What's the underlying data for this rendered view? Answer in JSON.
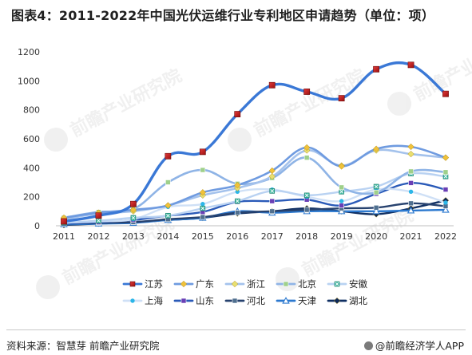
{
  "title": "图表4：2011-2022年中国光伏运维行业专利地区申请趋势（单位：项）",
  "footer": {
    "source": "资料来源：智慧芽 前瞻产业研究院",
    "brand": "@前瞻经济学人APP"
  },
  "watermark": "前瞻产业研究院",
  "colors": {
    "江苏": "#3a78d6",
    "广东": "#6f9be0",
    "浙江": "#a4c2ec",
    "北京": "#8fb4e6",
    "安徽": "#b9d2f2",
    "上海": "#cfe0f6",
    "山东": "#2a5ab8",
    "河北": "#27426f",
    "天津": "#2c79cf",
    "湖北": "#0f2f63"
  },
  "chart_data": {
    "type": "line",
    "smooth": true,
    "x": [
      "2011",
      "2012",
      "2013",
      "2014",
      "2015",
      "2016",
      "2017",
      "2018",
      "2019",
      "2020",
      "2021",
      "2022"
    ],
    "ylim": [
      0,
      1200
    ],
    "yticks": [
      "0",
      "200",
      "400",
      "600",
      "800",
      "1000",
      "1200"
    ],
    "grid": false,
    "legend_position": "bottom",
    "series": [
      {
        "name": "江苏",
        "marker": "square-red",
        "values": [
          30,
          70,
          150,
          480,
          510,
          770,
          970,
          925,
          880,
          1080,
          1110,
          910
        ]
      },
      {
        "name": "广东",
        "marker": "diamond",
        "values": [
          55,
          90,
          110,
          140,
          230,
          280,
          380,
          540,
          410,
          530,
          545,
          470
        ]
      },
      {
        "name": "浙江",
        "marker": "diamond",
        "values": [
          45,
          85,
          100,
          140,
          210,
          260,
          340,
          520,
          415,
          520,
          495,
          470
        ]
      },
      {
        "name": "北京",
        "marker": "square",
        "values": [
          55,
          95,
          115,
          300,
          385,
          290,
          330,
          470,
          265,
          230,
          375,
          370
        ]
      },
      {
        "name": "安徽",
        "marker": "x-square",
        "values": [
          20,
          35,
          55,
          70,
          120,
          170,
          240,
          210,
          235,
          270,
          360,
          340
        ]
      },
      {
        "name": "上海",
        "marker": "circle",
        "values": [
          20,
          30,
          45,
          130,
          150,
          235,
          250,
          200,
          170,
          250,
          235,
          160
        ]
      },
      {
        "name": "山东",
        "marker": "square",
        "values": [
          15,
          25,
          40,
          70,
          95,
          165,
          170,
          180,
          140,
          220,
          295,
          250
        ]
      },
      {
        "name": "河北",
        "marker": "square",
        "values": [
          15,
          20,
          25,
          45,
          60,
          90,
          100,
          110,
          120,
          125,
          155,
          135
        ]
      },
      {
        "name": "天津",
        "marker": "triangle",
        "values": [
          10,
          15,
          20,
          40,
          55,
          100,
          90,
          100,
          100,
          100,
          105,
          110
        ]
      },
      {
        "name": "湖北",
        "marker": "diamond",
        "values": [
          5,
          15,
          25,
          40,
          55,
          85,
          100,
          120,
          100,
          80,
          120,
          175
        ]
      }
    ]
  }
}
